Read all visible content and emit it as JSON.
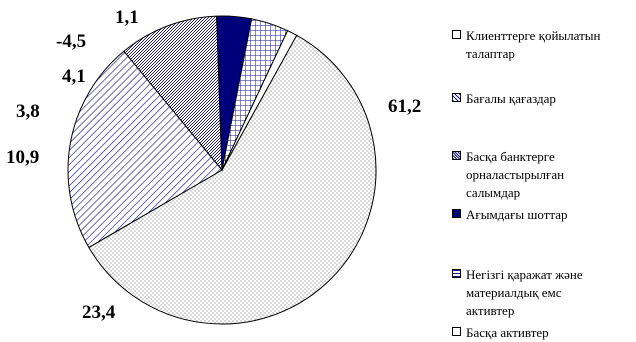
{
  "chart_data": {
    "type": "pie",
    "title": "",
    "categories": [
      "Клиенттерге қойылатын\nталаптар",
      "Бағалы қағаздар",
      "Басқа банктерге\nорналастырылған\nсалымдар",
      "Ағымдағы шоттар",
      "Негізгі қаражат және\nматериалдық емс\nактивтер",
      "Басқа активтер"
    ],
    "values": [
      61.2,
      23.4,
      10.9,
      3.8,
      4.1,
      1.1
    ],
    "value_labels": [
      "61,2",
      "23,4",
      "10,9",
      "3,8",
      "4,1",
      "1,1"
    ],
    "extra_labels": [
      "-4,5"
    ],
    "legend_position": "right",
    "colors": [
      "#ffffff",
      "#1a1a8a",
      "#1a1a8a",
      "#00007a",
      "#1a1a8a",
      "#ffffff"
    ]
  }
}
